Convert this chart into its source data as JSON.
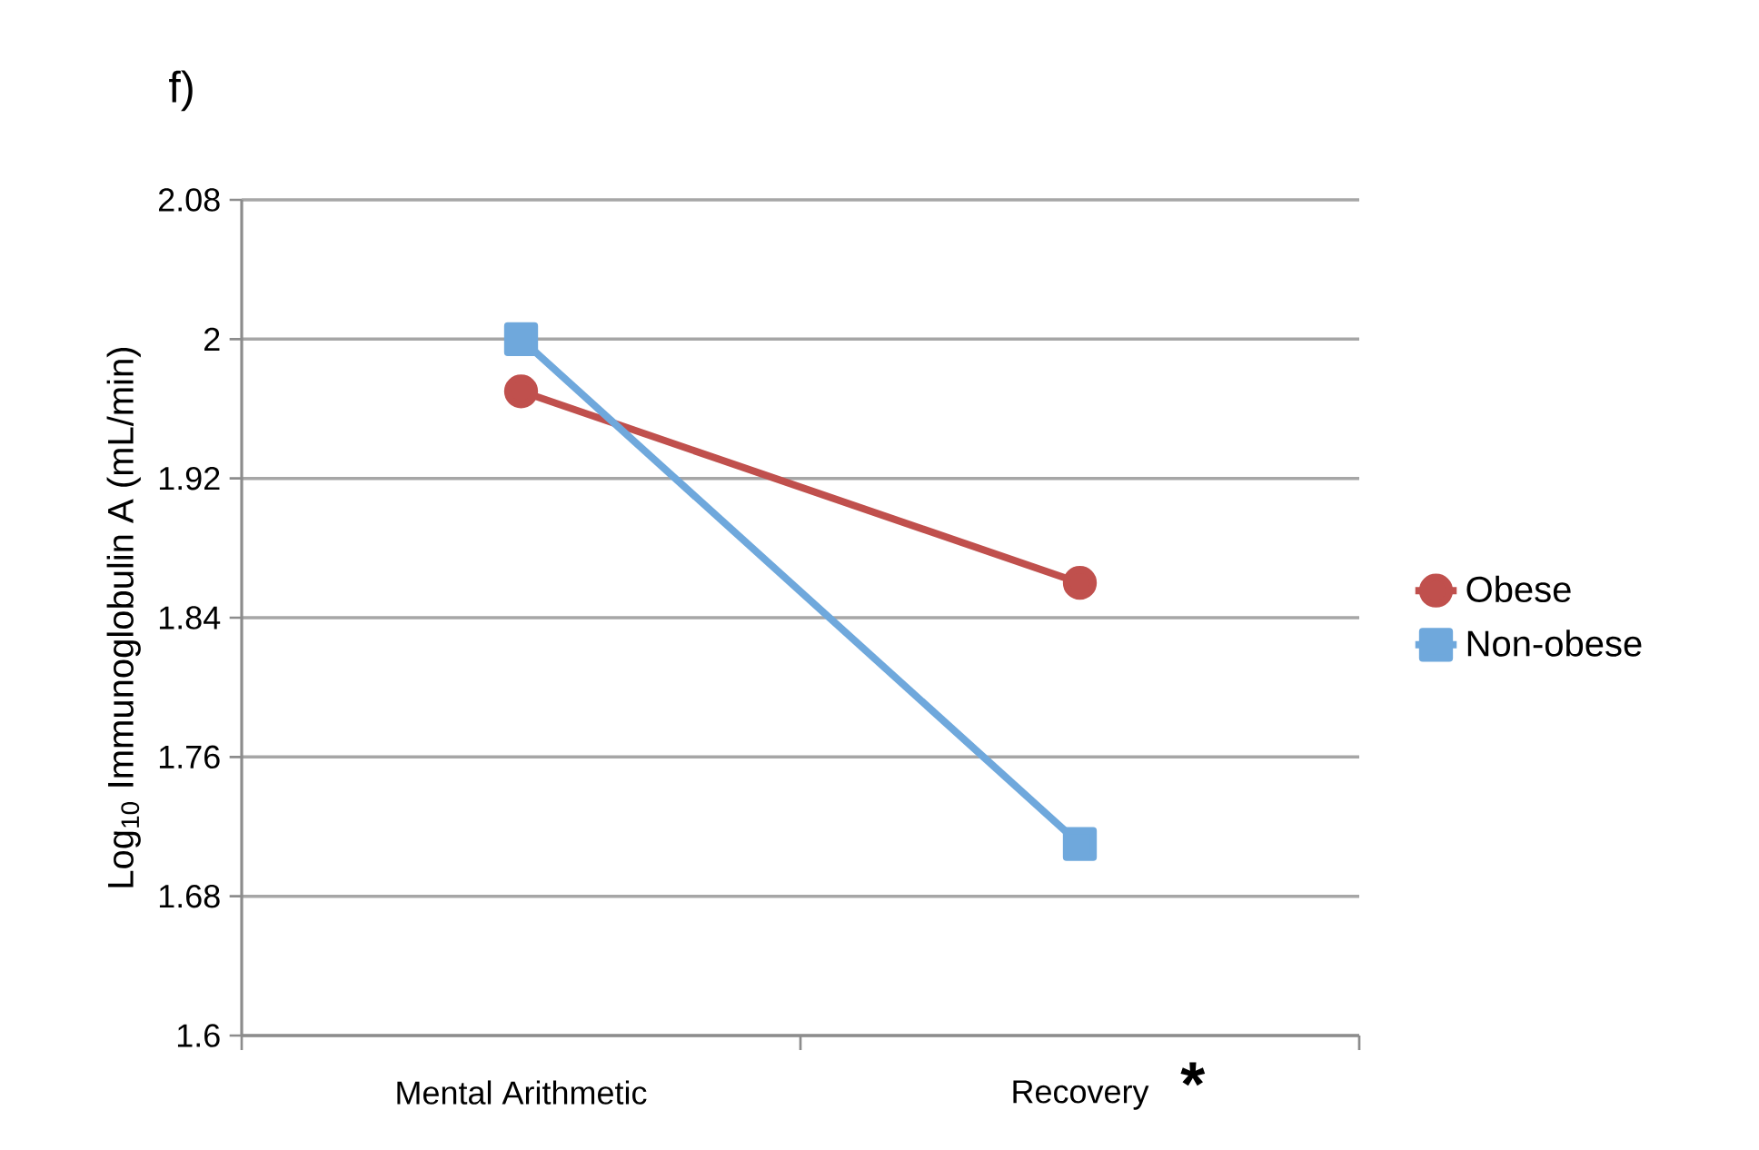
{
  "chart_data": {
    "type": "line",
    "title": "f)",
    "ylabel": "Log$_{10}$ Immunoglobulin A (mL/min)",
    "categories": [
      "Mental Arithmetic",
      "Recovery"
    ],
    "series": [
      {
        "name": "Obese",
        "color": "#c0504d",
        "marker": "circle",
        "values": [
          1.97,
          1.86
        ]
      },
      {
        "name": "Non-obese",
        "color": "#6fa8dc",
        "marker": "square",
        "values": [
          2.0,
          1.71
        ]
      }
    ],
    "ylim": [
      1.6,
      2.08
    ],
    "yticks": [
      1.6,
      1.68,
      1.76,
      1.84,
      1.92,
      2,
      2.08
    ],
    "grid": "y",
    "legend": "right",
    "annotations": [
      "*"
    ]
  }
}
